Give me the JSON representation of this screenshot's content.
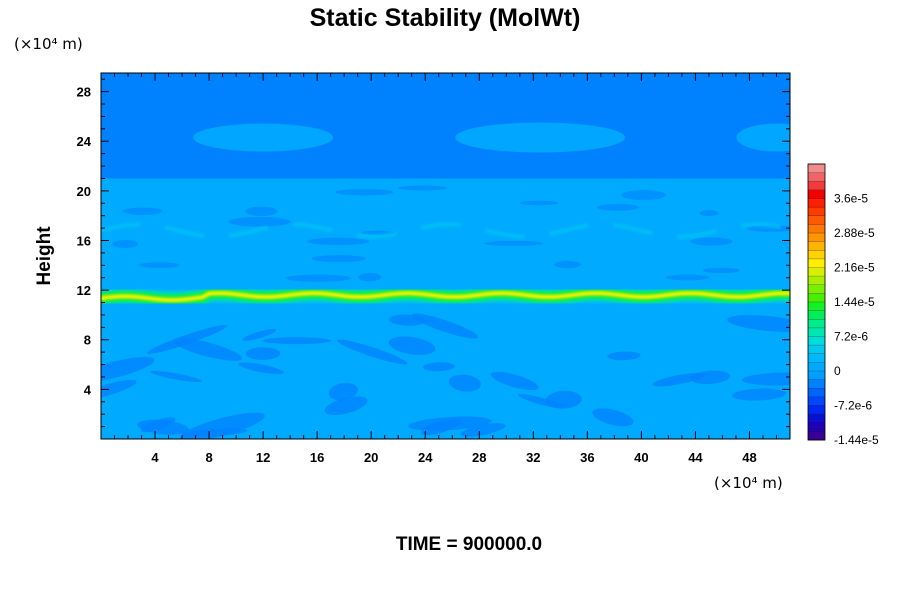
{
  "chart_data": {
    "type": "heatmap",
    "title": "Static Stability (MolWt)",
    "ylabel": "Height",
    "xlabel": "",
    "y_unit": "(×10⁴ m)",
    "x_unit": "(×10⁴ m)",
    "xlim": [
      0,
      51
    ],
    "ylim": [
      0,
      29.5
    ],
    "x_ticks": [
      4,
      8,
      12,
      16,
      20,
      24,
      28,
      32,
      36,
      40,
      44,
      48
    ],
    "y_ticks": [
      4,
      8,
      12,
      16,
      20,
      24,
      28
    ],
    "field_features": {
      "background_value": 0,
      "upper_layer_range": [
        21,
        29.5
      ],
      "upper_layer_value": -2e-06,
      "stable_band_height": 11.6,
      "stable_band_peak_value": 2.3e-05,
      "secondary_band_height": 16.8,
      "secondary_band_value": 5e-06
    },
    "colorbar": {
      "min": -1.44e-05,
      "max": 4.32e-05,
      "step": 1.8e-06,
      "tick_values": [
        -1.44e-05,
        -7.2e-06,
        0,
        7.2e-06,
        1.44e-05,
        2.16e-05,
        2.88e-05,
        3.6e-05
      ],
      "tick_labels": [
        "-1.44e-5",
        "-7.2e-6",
        "0",
        "7.2e-6",
        "1.44e-5",
        "2.16e-5",
        "2.88e-5",
        "3.6e-5"
      ],
      "colors": [
        "#3a0095",
        "#2400b4",
        "#0a10d2",
        "#0028f0",
        "#0046ff",
        "#0064ff",
        "#0082ff",
        "#009eff",
        "#00aaff",
        "#00b8ff",
        "#00c8f0",
        "#00dcdc",
        "#00e6b4",
        "#00ec8c",
        "#00ee5a",
        "#14f028",
        "#46f000",
        "#78f000",
        "#a8f000",
        "#d8f000",
        "#fff000",
        "#ffd200",
        "#ffb400",
        "#ff9600",
        "#ff7800",
        "#ff5a00",
        "#ff3c00",
        "#ff1e00",
        "#f00000",
        "#f03c3c",
        "#f06464",
        "#f08c8c"
      ]
    },
    "annotation": "TIME = 900000.0"
  }
}
